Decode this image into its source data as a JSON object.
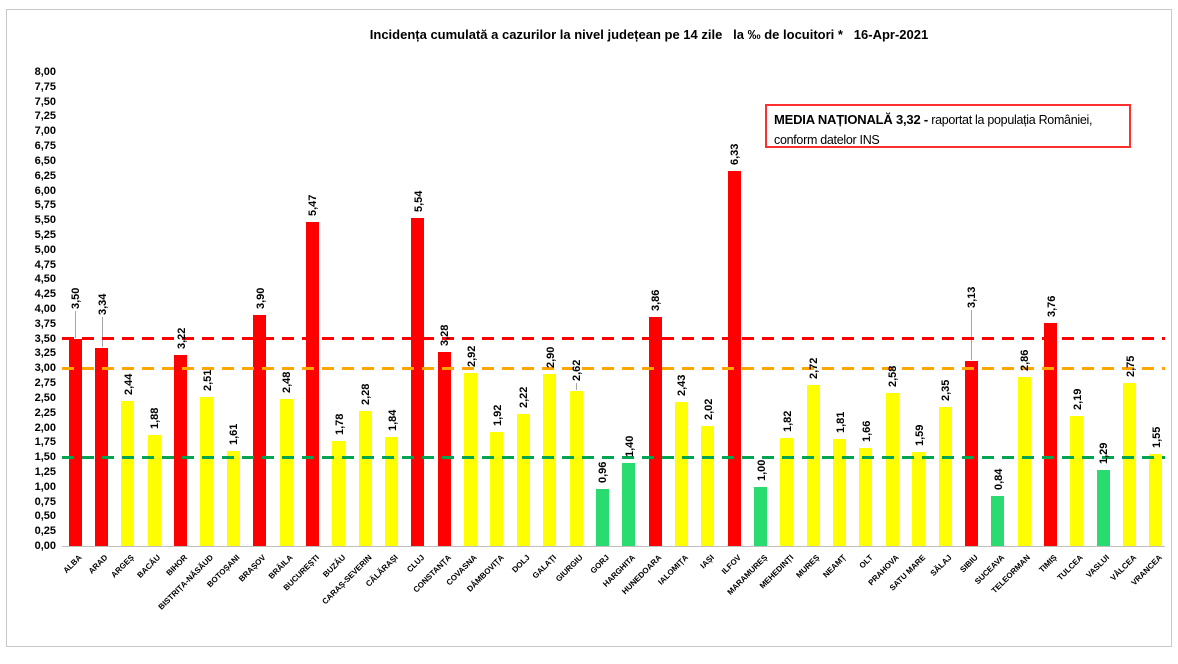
{
  "chart_data": {
    "type": "bar",
    "title": "Incidența cumulată a cazurilor la nivel județean pe 14 zile   la ‰ de locuitori *   16-Apr-2021",
    "xlabel": "",
    "ylabel": "",
    "ylim": [
      0,
      8
    ],
    "ytick_step": 0.25,
    "decimal_separator": ",",
    "grid": "off",
    "legend_position": "none",
    "categories": [
      "ALBA",
      "ARAD",
      "ARGEȘ",
      "BACĂU",
      "BIHOR",
      "BISTRIȚA-NĂSĂUD",
      "BOTOȘANI",
      "BRAȘOV",
      "BRĂILA",
      "BUCUREȘTI",
      "BUZĂU",
      "CARAȘ-SEVERIN",
      "CĂLĂRAȘI",
      "CLUJ",
      "CONSTANȚA",
      "COVASNA",
      "DÂMBOVIȚA",
      "DOLJ",
      "GALAȚI",
      "GIURGIU",
      "GORJ",
      "HARGHITA",
      "HUNEDOARA",
      "IALOMIȚA",
      "IAȘI",
      "ILFOV",
      "MARAMUREȘ",
      "MEHEDINȚI",
      "MUREȘ",
      "NEAMȚ",
      "OLT",
      "PRAHOVA",
      "SATU MARE",
      "SĂLAJ",
      "SIBIU",
      "SUCEAVA",
      "TELEORMAN",
      "TIMIȘ",
      "TULCEA",
      "VASLUI",
      "VÂLCEA",
      "VRANCEA"
    ],
    "values": [
      3.5,
      3.34,
      2.44,
      1.88,
      3.22,
      2.51,
      1.61,
      3.9,
      2.48,
      5.47,
      1.78,
      2.28,
      1.84,
      5.54,
      3.28,
      2.92,
      1.92,
      2.22,
      2.9,
      2.62,
      0.96,
      1.4,
      3.86,
      2.43,
      2.02,
      6.33,
      1.0,
      1.82,
      2.72,
      1.81,
      1.66,
      2.58,
      1.59,
      2.35,
      3.13,
      0.84,
      2.86,
      3.76,
      2.19,
      1.29,
      2.75,
      1.55
    ],
    "bar_color_rules": {
      "green_below": 1.5,
      "red_from": 3.0
    },
    "colors": {
      "red": "#ff0000",
      "yellow": "#ffff00",
      "green": "#2adb6f",
      "leader": "#a6a6a6",
      "axis": "#bfbfbf"
    },
    "reference_lines": [
      {
        "name": "red-threshold",
        "value": 3.5,
        "color": "#ff0000"
      },
      {
        "name": "orange-threshold",
        "value": 3.0,
        "color": "#ffa500"
      },
      {
        "name": "green-threshold",
        "value": 1.5,
        "color": "#00a551"
      }
    ],
    "label_offsets": {
      "ALBA": 30,
      "ARAD": 33,
      "SIBIU": 53,
      "GIURGIU": 10
    },
    "annotation": {
      "bold": "MEDIA NAȚIONALĂ 3,32 -",
      "line1_rest": " raportat la populația României,",
      "line2": "conform datelor INS",
      "border_color": "#ff2f2f"
    }
  }
}
